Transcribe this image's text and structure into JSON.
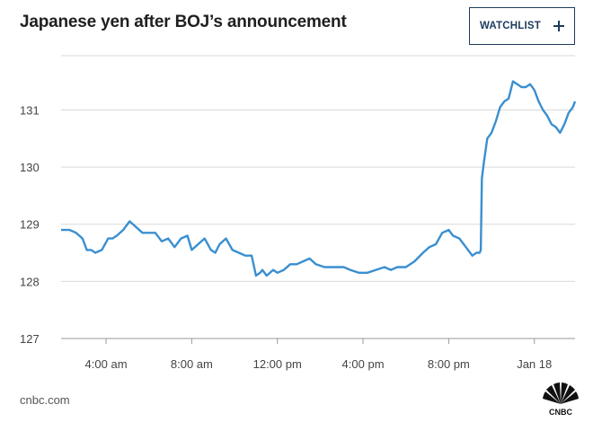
{
  "title": "Japanese yen after BOJ’s announcement",
  "watchlist_label": "WATCHLIST",
  "source": "cnbc.com",
  "brand_name": "CNBC",
  "line_color": "#3a8fd0",
  "chart_data": {
    "type": "line",
    "title": "Japanese yen after BOJ’s announcement",
    "xlabel": "",
    "ylabel": "",
    "x_tick_labels": [
      "4:00 am",
      "8:00 am",
      "12:00 pm",
      "4:00 pm",
      "8:00 pm",
      "Jan 18"
    ],
    "x_tick_hours": [
      4,
      8,
      12,
      16,
      20,
      24
    ],
    "x_range_hours": [
      1.9,
      25.9
    ],
    "y_ticks": [
      127,
      128,
      129,
      130,
      131
    ],
    "ylim": [
      127,
      131.95
    ],
    "grid": true,
    "series": [
      {
        "x_hours": [
          1.9,
          2.3,
          2.6,
          2.9,
          3.1,
          3.3,
          3.5,
          3.8,
          4.1,
          4.3,
          4.5,
          4.8,
          5.1,
          5.4,
          5.7,
          6.0,
          6.3,
          6.6,
          6.9,
          7.2,
          7.5,
          7.8,
          8.0,
          8.3,
          8.6,
          8.9,
          9.1,
          9.3,
          9.6,
          9.9,
          10.2,
          10.5,
          10.8,
          11.0,
          11.2,
          11.3,
          11.5,
          11.8,
          12.0,
          12.3,
          12.6,
          12.9,
          13.2,
          13.5,
          13.8,
          14.2,
          14.5,
          14.8,
          15.1,
          15.4,
          15.8,
          16.2,
          16.6,
          17.0,
          17.3,
          17.6,
          18.0,
          18.4,
          18.8,
          19.1,
          19.4,
          19.7,
          20.0,
          20.2,
          20.5,
          20.8,
          21.1,
          21.3,
          21.45,
          21.5,
          21.55,
          21.65,
          21.8,
          22.0,
          22.2,
          22.4,
          22.6,
          22.8,
          23.0,
          23.2,
          23.4,
          23.6,
          23.8,
          24.0,
          24.2,
          24.4,
          24.6,
          24.8,
          25.0,
          25.2,
          25.4,
          25.6,
          25.8,
          25.9
        ],
        "y": [
          128.9,
          128.9,
          128.85,
          128.75,
          128.55,
          128.55,
          128.5,
          128.55,
          128.75,
          128.75,
          128.8,
          128.9,
          129.05,
          128.95,
          128.85,
          128.85,
          128.85,
          128.7,
          128.75,
          128.6,
          128.75,
          128.8,
          128.55,
          128.65,
          128.75,
          128.55,
          128.5,
          128.65,
          128.75,
          128.55,
          128.5,
          128.45,
          128.45,
          128.1,
          128.15,
          128.2,
          128.1,
          128.2,
          128.15,
          128.2,
          128.3,
          128.3,
          128.35,
          128.4,
          128.3,
          128.25,
          128.25,
          128.25,
          128.25,
          128.2,
          128.15,
          128.15,
          128.2,
          128.25,
          128.2,
          128.25,
          128.25,
          128.35,
          128.5,
          128.6,
          128.65,
          128.85,
          128.9,
          128.8,
          128.75,
          128.6,
          128.45,
          128.5,
          128.5,
          128.55,
          129.8,
          130.1,
          130.5,
          130.6,
          130.8,
          131.05,
          131.15,
          131.2,
          131.5,
          131.45,
          131.4,
          131.4,
          131.45,
          131.35,
          131.15,
          131.0,
          130.9,
          130.75,
          130.7,
          130.6,
          130.75,
          130.95,
          131.05,
          131.15
        ]
      }
    ]
  }
}
